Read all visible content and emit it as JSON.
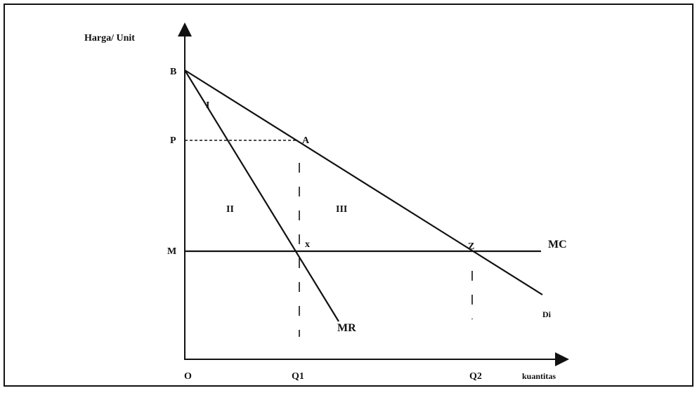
{
  "axes": {
    "y_label": "Harga/ Unit",
    "x_label": "kuantitas",
    "origin": "O"
  },
  "points": {
    "b": "B",
    "p": "P",
    "m": "M",
    "a": "A",
    "x": "x",
    "z": "Z",
    "q1": "Q1",
    "q2": "Q2"
  },
  "areas": {
    "one": "I",
    "two": "II",
    "three": "III"
  },
  "lines": {
    "mc": "MC",
    "mr": "MR",
    "demand": "Di"
  }
}
